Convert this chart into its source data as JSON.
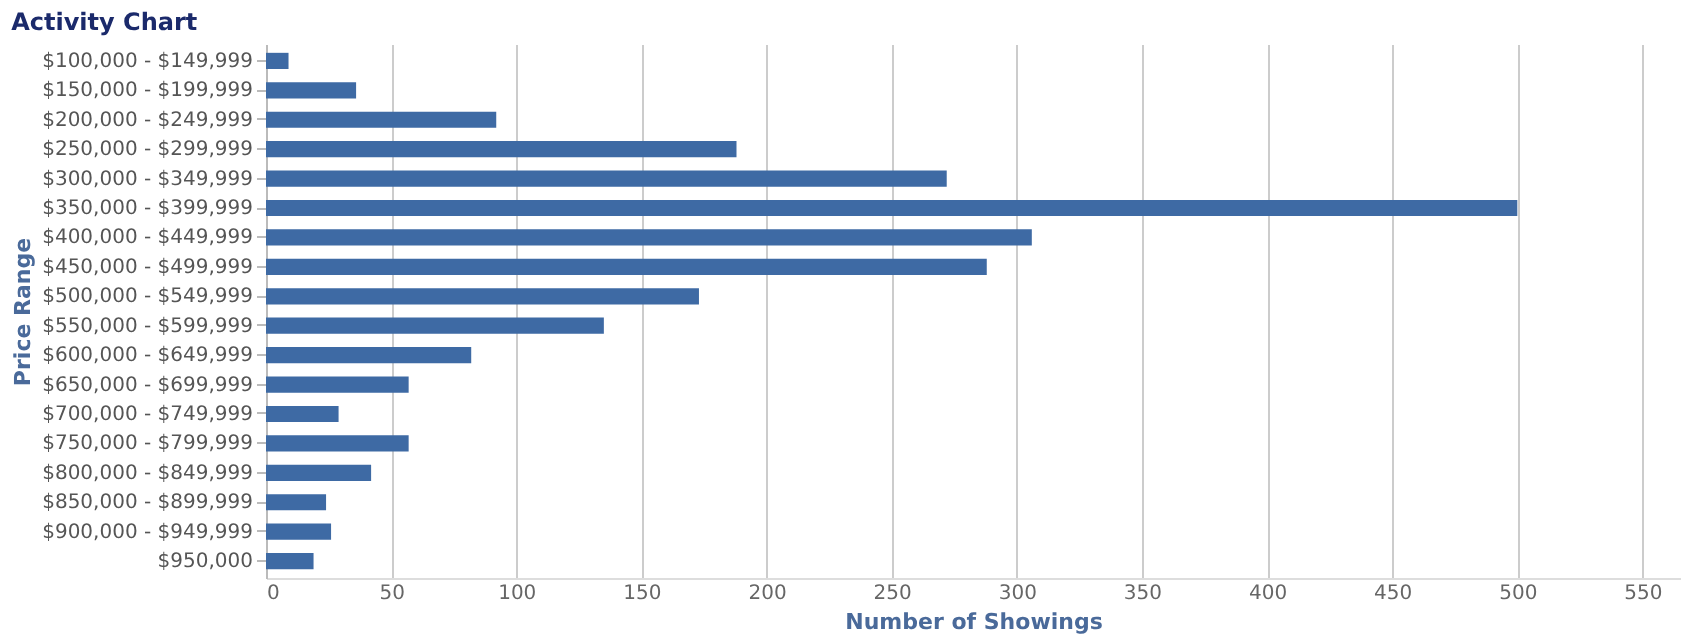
{
  "chart_data": {
    "type": "bar",
    "orientation": "horizontal",
    "title": "Activity Chart",
    "xlabel": "Number of Showings",
    "ylabel": "Price Range",
    "categories": [
      "$100,000 - $149,999",
      "$150,000 - $199,999",
      "$200,000 - $249,999",
      "$250,000 - $299,999",
      "$300,000 - $349,999",
      "$350,000 - $399,999",
      "$400,000 - $449,999",
      "$450,000 - $499,999",
      "$500,000 - $549,999",
      "$550,000 - $599,999",
      "$600,000 - $649,999",
      "$650,000 - $699,999",
      "$700,000 - $749,999",
      "$750,000 - $799,999",
      "$800,000 - $849,999",
      "$850,000 - $899,999",
      "$900,000 - $949,999",
      "$950,000"
    ],
    "values": [
      9,
      36,
      92,
      188,
      272,
      500,
      306,
      288,
      173,
      135,
      82,
      57,
      29,
      57,
      42,
      24,
      26,
      19
    ],
    "color": "#3e6aa4",
    "xlim": [
      0,
      565
    ],
    "xticks": [
      0,
      50,
      100,
      150,
      200,
      250,
      300,
      350,
      400,
      450,
      500,
      550
    ],
    "grid": "x"
  }
}
